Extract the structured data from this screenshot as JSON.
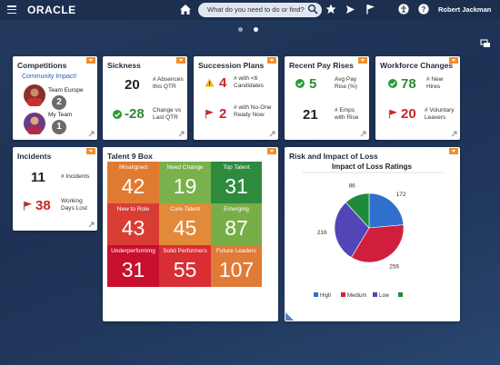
{
  "header": {
    "logo": "ORACLE",
    "search_placeholder": "What do you need to do or find?",
    "user_name": "Robert Jackman"
  },
  "pager": {
    "total": 2,
    "active": 2
  },
  "competitions": {
    "title": "Competitions",
    "link": "Community Impact!",
    "team_europe_label": "Team Europe",
    "team_europe_rank": "2",
    "my_team_label": "My Team",
    "my_team_rank": "1"
  },
  "sickness": {
    "title": "Sickness",
    "absences_value": "20",
    "absences_label_1": "# Absences",
    "absences_label_2": "this QTR",
    "change_value": "-28",
    "change_label_1": "Change vs",
    "change_label_2": "Last QTR"
  },
  "succession": {
    "title": "Succession Plans",
    "candidates_value": "4",
    "candidates_label": "# with <6 Candidates",
    "ready_value": "2",
    "ready_label": "# with No-One Ready Now"
  },
  "payrises": {
    "title": "Recent Pay Rises",
    "avg_value": "5",
    "avg_label_1": "Avg Pay",
    "avg_label_2": "Rise (%)",
    "emps_value": "21",
    "emps_label_1": "# Emps",
    "emps_label_2": "with Rise"
  },
  "workforce": {
    "title": "Workforce Changes",
    "hires_value": "78",
    "hires_label_1": "# New",
    "hires_label_2": "Hires",
    "leavers_value": "20",
    "leavers_label_1": "# Voluntary",
    "leavers_label_2": "Leavers"
  },
  "incidents": {
    "title": "Incidents",
    "count_value": "11",
    "count_label": "# Incidents",
    "days_value": "38",
    "days_label_1": "Working",
    "days_label_2": "Days Lost"
  },
  "talent": {
    "title": "Talent 9 Box",
    "cells": [
      {
        "label": "Misaligned",
        "value": "42",
        "color": "#e07a31"
      },
      {
        "label": "Need Change",
        "value": "19",
        "color": "#79b14c"
      },
      {
        "label": "Top Talent",
        "value": "31",
        "color": "#2e8a3c"
      },
      {
        "label": "New to Role",
        "value": "43",
        "color": "#d83d34"
      },
      {
        "label": "Core Talent",
        "value": "45",
        "color": "#e28a3a"
      },
      {
        "label": "Emerging",
        "value": "87",
        "color": "#78ae48"
      },
      {
        "label": "Underperforming",
        "value": "31",
        "color": "#c8102e"
      },
      {
        "label": "Solid Performers",
        "value": "55",
        "color": "#d92e34"
      },
      {
        "label": "Future Leaders",
        "value": "107",
        "color": "#df7b37"
      }
    ]
  },
  "risk": {
    "title": "Risk and Impact of Loss"
  },
  "colors": {
    "accent_orange": "#f0902a",
    "good_green": "#2c9a3a",
    "bad_red": "#d0232d",
    "warn_yellow": "#f2b21b"
  },
  "chart_data": {
    "type": "pie",
    "title": "Impact of Loss Ratings",
    "categories": [
      "High",
      "Medium",
      "Low",
      ""
    ],
    "values": [
      172,
      256,
      216,
      86
    ],
    "colors": [
      "#2f6fce",
      "#d01f3c",
      "#5145b7",
      "#1f8a3c"
    ],
    "legend_position": "bottom"
  }
}
